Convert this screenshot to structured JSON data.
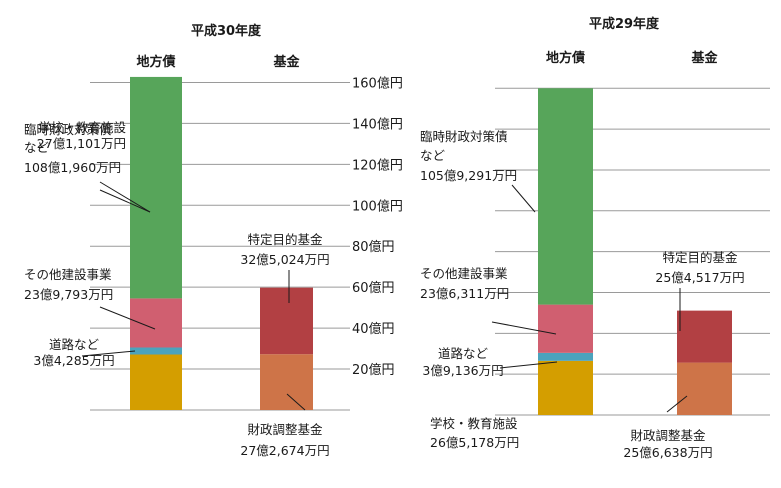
{
  "chart_data": [
    {
      "type": "bar",
      "stacked": true,
      "title": "平成30年度",
      "categories": [
        "地方債",
        "基金"
      ],
      "y_unit": "億円",
      "ylim": [
        0,
        160
      ],
      "yticks": [
        20,
        40,
        60,
        80,
        100,
        120,
        140,
        160
      ],
      "ytick_labels": [
        "20億円",
        "40億円",
        "60億円",
        "80億円",
        "100億円",
        "120億円",
        "140億円",
        "160億円"
      ],
      "grid": true,
      "series": [
        {
          "label": [
            "学校・教育施設",
            "27億1,101万円"
          ],
          "category": "地方債",
          "value": 27.1101,
          "color": "#d49e00"
        },
        {
          "label": [
            "道路など",
            "3億4,285万円"
          ],
          "category": "地方債",
          "value": 3.4285,
          "color": "#4ba3bd"
        },
        {
          "label": [
            "その他建設事業",
            "23億9,793万円"
          ],
          "category": "地方債",
          "value": 23.9793,
          "color": "#d05f70"
        },
        {
          "label": [
            "臨時財政対策債",
            "など",
            "108億1,960万円"
          ],
          "category": "地方債",
          "value": 108.196,
          "color": "#57a55a"
        },
        {
          "label": [
            "財政調整基金",
            "27億2,674万円"
          ],
          "category": "基金",
          "value": 27.2674,
          "color": "#ce7448"
        },
        {
          "label": [
            "特定目的基金",
            "32億5,024万円"
          ],
          "category": "基金",
          "value": 32.5024,
          "color": "#b24043"
        }
      ]
    },
    {
      "type": "bar",
      "stacked": true,
      "title": "平成29年度",
      "categories": [
        "地方債",
        "基金"
      ],
      "y_unit": "億円",
      "ylim": [
        0,
        160
      ],
      "grid": true,
      "series": [
        {
          "label": [
            "学校・教育施設",
            "26億5,178万円"
          ],
          "category": "地方債",
          "value": 26.5178,
          "color": "#d49e00"
        },
        {
          "label": [
            "道路など",
            "3億9,136万円"
          ],
          "category": "地方債",
          "value": 3.9136,
          "color": "#4ba3bd"
        },
        {
          "label": [
            "その他建設事業",
            "23億6,311万円"
          ],
          "category": "地方債",
          "value": 23.6311,
          "color": "#d05f70"
        },
        {
          "label": [
            "臨時財政対策債",
            "など",
            "105億9,291万円"
          ],
          "category": "地方債",
          "value": 105.9291,
          "color": "#57a55a"
        },
        {
          "label": [
            "財政調整基金",
            "25億6,638万円"
          ],
          "category": "基金",
          "value": 25.6638,
          "color": "#ce7448"
        },
        {
          "label": [
            "特定目的基金",
            "25億4,517万円"
          ],
          "category": "基金",
          "value": 25.4517,
          "color": "#b24043"
        }
      ]
    }
  ]
}
